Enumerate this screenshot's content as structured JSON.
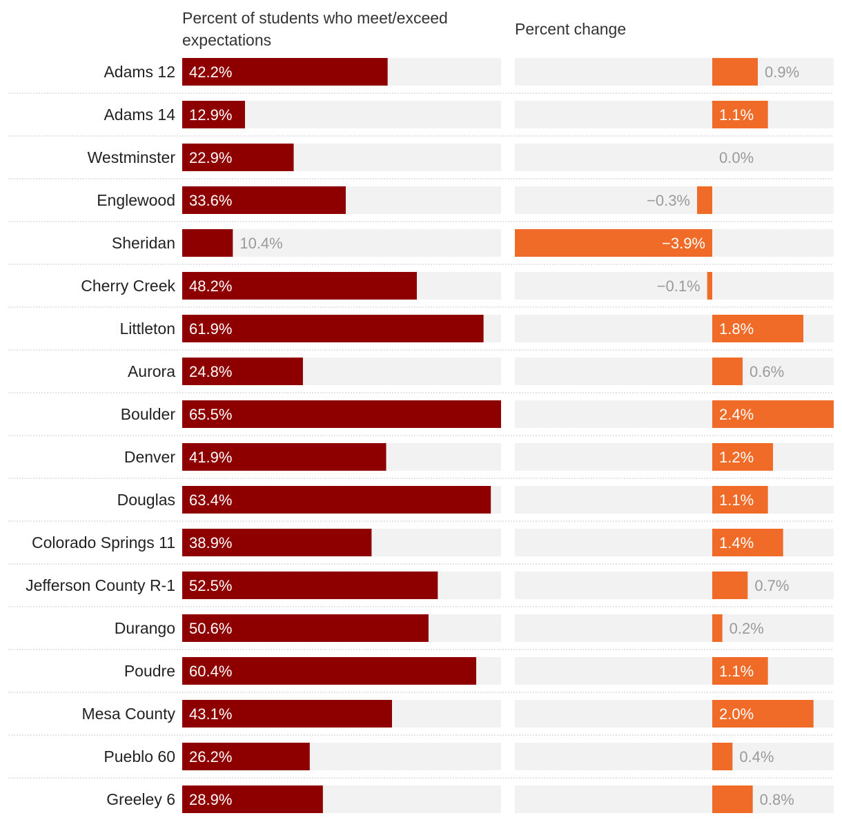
{
  "chart_data": {
    "type": "bar",
    "layout": "split-bar",
    "panels": [
      {
        "title": "Percent of students who meet/exceed expectations",
        "title_lines": [
          "Percent of students who meet/exceed",
          "expectations"
        ],
        "xlim": [
          0,
          65.5
        ]
      },
      {
        "title": "Percent change",
        "title_lines": [
          "Percent change"
        ],
        "xlim": [
          -3.9,
          2.4
        ]
      }
    ],
    "categories": [
      "Adams 12",
      "Adams 14",
      "Westminster",
      "Englewood",
      "Sheridan",
      "Cherry Creek",
      "Littleton",
      "Aurora",
      "Boulder",
      "Denver",
      "Douglas",
      "Colorado Springs 11",
      "Jefferson County R-1",
      "Durango",
      "Poudre",
      "Mesa County",
      "Pueblo 60",
      "Greeley 6"
    ],
    "series": [
      {
        "name": "Percent of students who meet/exceed expectations",
        "values": [
          42.2,
          12.9,
          22.9,
          33.6,
          10.4,
          48.2,
          61.9,
          24.8,
          65.5,
          41.9,
          63.4,
          38.9,
          52.5,
          50.6,
          60.4,
          43.1,
          26.2,
          28.9
        ],
        "labels": [
          "42.2%",
          "12.9%",
          "22.9%",
          "33.6%",
          "10.4%",
          "48.2%",
          "61.9%",
          "24.8%",
          "65.5%",
          "41.9%",
          "63.4%",
          "38.9%",
          "52.5%",
          "50.6%",
          "60.4%",
          "43.1%",
          "26.2%",
          "28.9%"
        ]
      },
      {
        "name": "Percent change",
        "values": [
          0.9,
          1.1,
          0.0,
          -0.3,
          -3.9,
          -0.1,
          1.8,
          0.6,
          2.4,
          1.2,
          1.1,
          1.4,
          0.7,
          0.2,
          1.1,
          2.0,
          0.4,
          0.8
        ],
        "labels": [
          "0.9%",
          "1.1%",
          "0.0%",
          "−0.3%",
          "−3.9%",
          "−0.1%",
          "1.8%",
          "0.6%",
          "2.4%",
          "1.2%",
          "1.1%",
          "1.4%",
          "0.7%",
          "0.2%",
          "1.1%",
          "2.0%",
          "0.4%",
          "0.8%"
        ]
      }
    ],
    "colors": {
      "bar_primary": "#8e0000",
      "bar_change": "#f06a28",
      "track": "#f2f2f2",
      "label_inside": "#ffffff",
      "label_outside": "#9a9a9a",
      "category_text": "#222222",
      "title_text": "#333333",
      "separator": "#c8c8c8"
    }
  }
}
